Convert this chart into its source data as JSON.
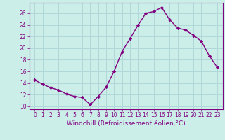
{
  "x": [
    0,
    1,
    2,
    3,
    4,
    5,
    6,
    7,
    8,
    9,
    10,
    11,
    12,
    13,
    14,
    15,
    16,
    17,
    18,
    19,
    20,
    21,
    22,
    23
  ],
  "y": [
    14.5,
    13.8,
    13.2,
    12.8,
    12.1,
    11.7,
    11.5,
    10.3,
    11.7,
    13.3,
    16.0,
    19.4,
    21.6,
    23.9,
    26.0,
    26.3,
    27.0,
    24.9,
    23.5,
    23.1,
    22.2,
    21.2,
    18.7,
    16.7
  ],
  "line_color": "#800080",
  "marker": "D",
  "marker_size": 2.2,
  "bg_color": "#cceee8",
  "grid_color": "#b0d8d8",
  "xlabel": "Windchill (Refroidissement éolien,°C)",
  "ylim": [
    9.5,
    27.8
  ],
  "yticks": [
    10,
    12,
    14,
    16,
    18,
    20,
    22,
    24,
    26
  ],
  "xticks": [
    0,
    1,
    2,
    3,
    4,
    5,
    6,
    7,
    8,
    9,
    10,
    11,
    12,
    13,
    14,
    15,
    16,
    17,
    18,
    19,
    20,
    21,
    22,
    23
  ],
  "tick_color": "#800080",
  "label_color": "#800080",
  "tick_fontsize": 5.5,
  "xlabel_fontsize": 6.5,
  "line_width": 1.0
}
